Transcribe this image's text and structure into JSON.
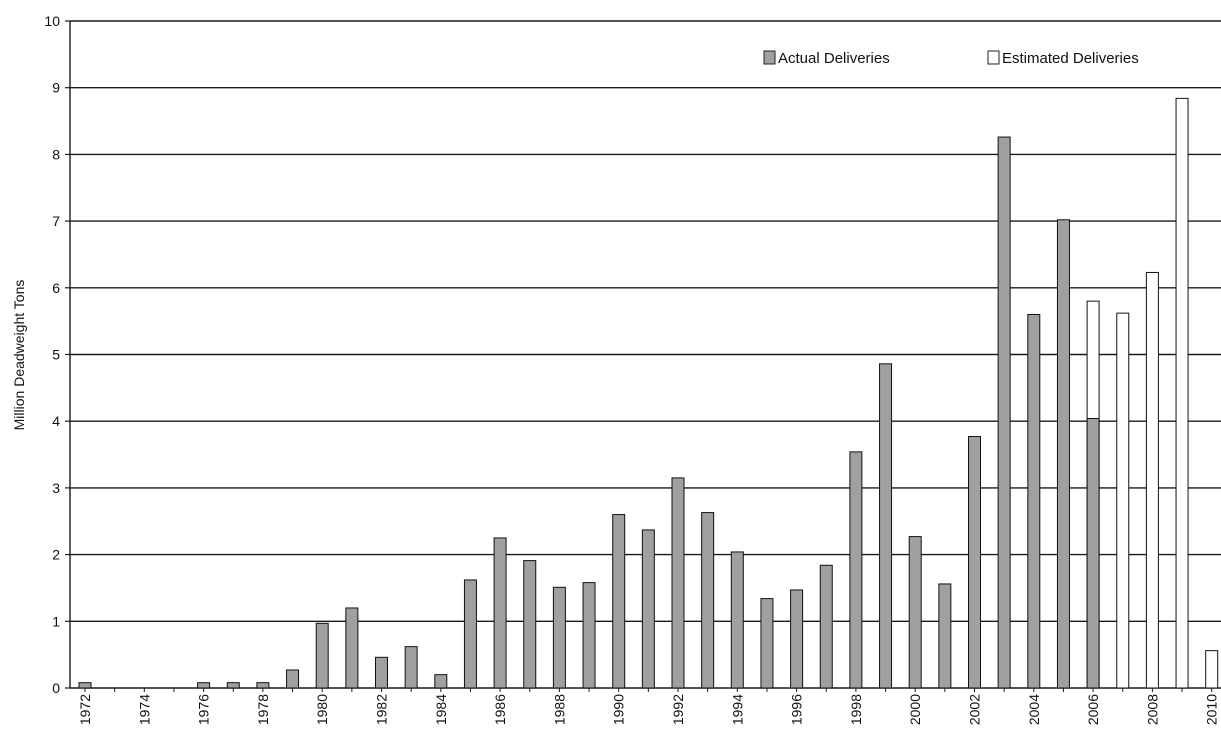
{
  "chart_data": {
    "type": "bar",
    "ylabel": "Million Deadweight Tons",
    "xlabel": "",
    "ylim": [
      0,
      10
    ],
    "yticks": [
      "0",
      "1",
      "2",
      "3",
      "4",
      "5",
      "6",
      "7",
      "8",
      "9",
      "10"
    ],
    "grid": true,
    "legend": {
      "placement": "top-right",
      "entries": [
        {
          "label": "Actual Deliveries",
          "color": "#a0a0a0"
        },
        {
          "label": "Estimated Deliveries",
          "color": "#ffffff"
        }
      ]
    },
    "categories": [
      1972,
      1973,
      1974,
      1975,
      1976,
      1977,
      1978,
      1979,
      1980,
      1981,
      1982,
      1983,
      1984,
      1985,
      1986,
      1987,
      1988,
      1989,
      1990,
      1991,
      1992,
      1993,
      1994,
      1995,
      1996,
      1997,
      1998,
      1999,
      2000,
      2001,
      2002,
      2003,
      2004,
      2005,
      2006,
      2007,
      2008,
      2009,
      2010
    ],
    "xticks": [
      "1972",
      "1974",
      "1976",
      "1978",
      "1980",
      "1982",
      "1984",
      "1986",
      "1988",
      "1990",
      "1992",
      "1994",
      "1996",
      "1998",
      "2000",
      "2002",
      "2004",
      "2006",
      "2008",
      "2010"
    ],
    "series": [
      {
        "name": "Actual Deliveries",
        "color": "#a0a0a0",
        "values": [
          0.08,
          0,
          0,
          0,
          0.08,
          0.08,
          0.08,
          0.27,
          0.97,
          1.2,
          0.46,
          0.62,
          0.2,
          1.62,
          2.25,
          1.91,
          1.51,
          1.58,
          2.6,
          2.37,
          3.15,
          2.63,
          2.04,
          1.34,
          1.47,
          1.84,
          3.54,
          4.86,
          2.27,
          1.56,
          3.77,
          8.26,
          5.6,
          7.02,
          4.04,
          null,
          null,
          null,
          null
        ]
      },
      {
        "name": "Estimated Deliveries",
        "color": "#ffffff",
        "values": [
          null,
          null,
          null,
          null,
          null,
          null,
          null,
          null,
          null,
          null,
          null,
          null,
          null,
          null,
          null,
          null,
          null,
          null,
          null,
          null,
          null,
          null,
          null,
          null,
          null,
          null,
          null,
          null,
          null,
          null,
          null,
          null,
          null,
          null,
          5.8,
          5.62,
          6.23,
          8.84,
          0.56
        ]
      }
    ]
  }
}
